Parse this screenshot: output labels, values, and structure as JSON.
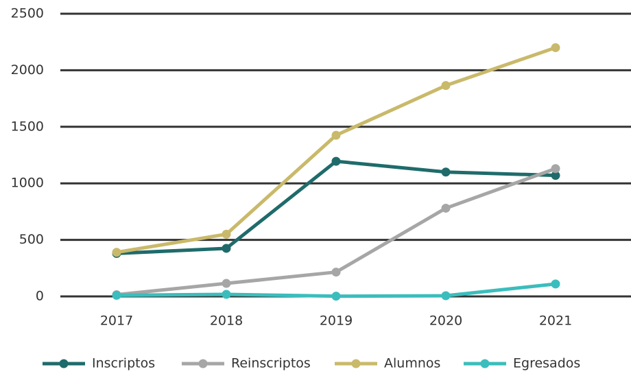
{
  "chart_data": {
    "type": "line",
    "categories": [
      "2017",
      "2018",
      "2019",
      "2020",
      "2021"
    ],
    "series": [
      {
        "name": "Inscriptos",
        "color": "#1f6b6b",
        "values": [
          380,
          425,
          1195,
          1100,
          1070
        ]
      },
      {
        "name": "Reinscriptos",
        "color": "#a6a6a6",
        "values": [
          15,
          115,
          215,
          780,
          1130
        ]
      },
      {
        "name": "Alumnos",
        "color": "#c9b96a",
        "values": [
          390,
          550,
          1425,
          1865,
          2200
        ]
      },
      {
        "name": "Egresados",
        "color": "#3bbdbd",
        "values": [
          10,
          18,
          2,
          6,
          110
        ]
      }
    ],
    "ylim": [
      0,
      2500
    ],
    "yticks": [
      0,
      500,
      1000,
      1500,
      2000,
      2500
    ],
    "grid": true,
    "legend": "bottom"
  }
}
